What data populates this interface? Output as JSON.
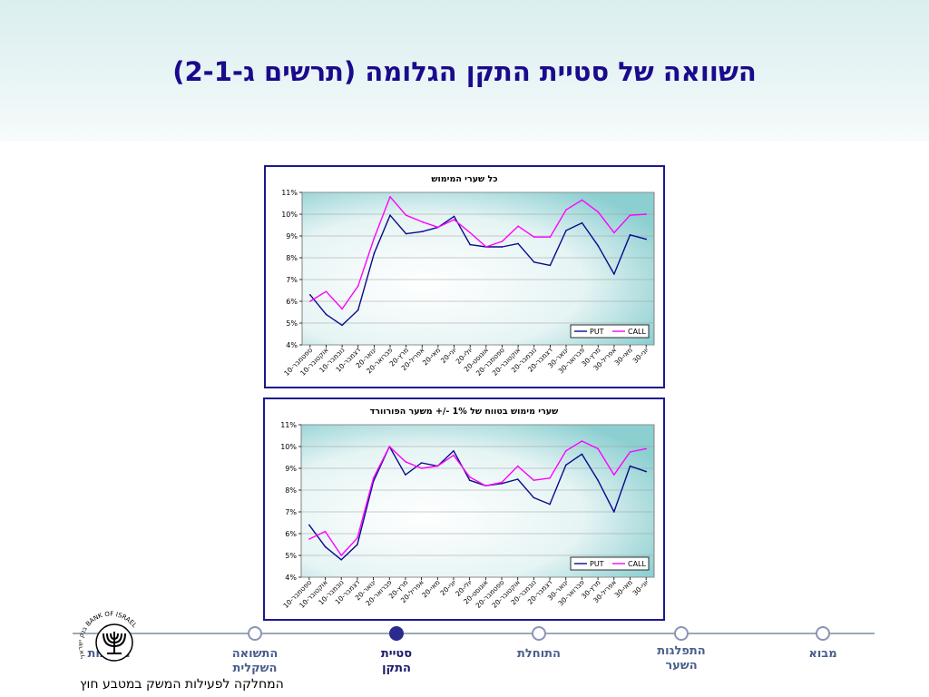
{
  "slide": {
    "title": "השוואה של סטיית התקן הגלומה (תרשים ג-2-1)"
  },
  "colors": {
    "put": "#0a0a8c",
    "call": "#ff00ff",
    "title": "#1a0a8c",
    "frame": "#1a1a8c",
    "nav_active": "#2b2b8f"
  },
  "chart_data": [
    {
      "type": "line",
      "title": "כל שערי המימוש",
      "xlabel": "",
      "ylabel": "",
      "ylim": [
        4,
        11
      ],
      "y_ticks": [
        "4%",
        "5%",
        "6%",
        "7%",
        "8%",
        "9%",
        "10%",
        "11%"
      ],
      "categories": [
        "10-ספטמבר",
        "10-אוקטובר",
        "10-נובמבר",
        "10-דצמבר",
        "20-ינואר",
        "20-פברואר",
        "20-מרץ",
        "20-אפריל",
        "20-מאי",
        "20-יוני",
        "20-יולי",
        "20-אוגוסט",
        "20-ספטמבר",
        "20-אוקטובר",
        "20-נובמבר",
        "20-דצמבר",
        "30-ינואר",
        "30-פברואר",
        "30-מרץ",
        "30-אפריל",
        "30-מאי",
        "30-יוני"
      ],
      "series": [
        {
          "name": "PUT",
          "color": "#0a0a8c",
          "values": [
            6.3,
            5.4,
            4.9,
            5.6,
            8.2,
            9.95,
            9.1,
            9.2,
            9.4,
            9.9,
            8.6,
            8.5,
            8.5,
            8.65,
            7.8,
            7.65,
            9.25,
            9.6,
            8.55,
            7.25,
            9.05,
            8.85
          ]
        },
        {
          "name": "CALL",
          "color": "#ff00ff",
          "values": [
            6.0,
            6.45,
            5.65,
            6.7,
            8.9,
            10.8,
            9.95,
            9.65,
            9.4,
            9.75,
            9.15,
            8.5,
            8.75,
            9.45,
            8.95,
            8.95,
            10.2,
            10.65,
            10.1,
            9.15,
            9.95,
            10.0
          ]
        }
      ],
      "legend": [
        "PUT",
        "CALL"
      ],
      "legend_position": "bottom-right",
      "grid": true
    },
    {
      "type": "line",
      "title": "שערי מימוש בטווח של 1% -/+  משער הפורוורד",
      "xlabel": "",
      "ylabel": "",
      "ylim": [
        4,
        11
      ],
      "y_ticks": [
        "4%",
        "5%",
        "6%",
        "7%",
        "8%",
        "9%",
        "10%",
        "11%"
      ],
      "categories": [
        "10-ספטמבר",
        "10-אוקטובר",
        "10-נובמבר",
        "10-דצמבר",
        "20-ינואר",
        "20-פברואר",
        "20-מרץ",
        "20-אפריל",
        "20-מאי",
        "20-יוני",
        "20-יולי",
        "20-אוגוסט",
        "20-ספטמבר",
        "20-אוקטובר",
        "20-נובמבר",
        "20-דצמבר",
        "30-ינואר",
        "30-פברואר",
        "30-מרץ",
        "30-אפריל",
        "30-מאי",
        "30-יוני"
      ],
      "series": [
        {
          "name": "PUT",
          "color": "#0a0a8c",
          "values": [
            6.4,
            5.4,
            4.8,
            5.5,
            8.4,
            10.0,
            8.7,
            9.25,
            9.1,
            9.8,
            8.45,
            8.2,
            8.3,
            8.5,
            7.65,
            7.35,
            9.15,
            9.65,
            8.45,
            7.0,
            9.1,
            8.85
          ]
        },
        {
          "name": "CALL",
          "color": "#ff00ff",
          "values": [
            5.75,
            6.1,
            5.0,
            5.8,
            8.55,
            10.0,
            9.3,
            9.0,
            9.1,
            9.6,
            8.6,
            8.2,
            8.35,
            9.1,
            8.45,
            8.55,
            9.8,
            10.25,
            9.9,
            8.7,
            9.75,
            9.9
          ]
        }
      ],
      "legend": [
        "PUT",
        "CALL"
      ],
      "legend_position": "bottom-right",
      "grid": true
    }
  ],
  "nav": {
    "items": [
      {
        "label": "מבוא",
        "active": false
      },
      {
        "label": "התפלגות\nהשער",
        "active": false
      },
      {
        "label": "התוחלת",
        "active": false
      },
      {
        "label": "סטיית\nהתקן",
        "active": true
      },
      {
        "label": "התשואה\nהשקלית",
        "active": false
      },
      {
        "label": "מסקנות",
        "active": false
      }
    ]
  },
  "logo": {
    "text": "בנק ישראל BANK OF ISRAEL"
  },
  "footer": {
    "department": "המחלקה לפעילות המשק במטבע חוץ"
  }
}
